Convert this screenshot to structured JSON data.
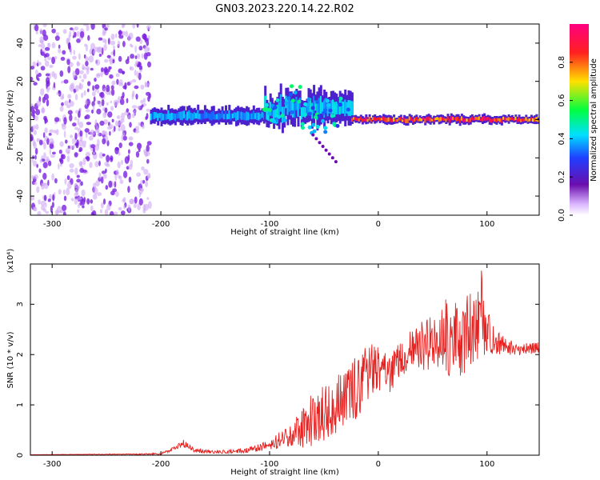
{
  "title": "GN03.2023.220.14.22.R02",
  "chart_data": [
    {
      "type": "heatmap",
      "name": "spectrogram",
      "xlabel": "Height of straight line (km)",
      "ylabel": "Frequency (Hz)",
      "xlim": [
        -320,
        148
      ],
      "ylim": [
        -50,
        50
      ],
      "xticks": [
        -300,
        -200,
        -100,
        0,
        100
      ],
      "yticks": [
        -40,
        -20,
        0,
        20,
        40
      ],
      "colorbar": {
        "label": "Normalized spectral amplitude",
        "range": [
          0,
          1
        ],
        "ticks": [
          "0.0",
          "0.2",
          "0.4",
          "0.6",
          "0.8"
        ],
        "colormap": [
          "#ffffff",
          "#6a0dad",
          "#1f3fff",
          "#00e0ff",
          "#00ff40",
          "#ffe000",
          "#ff2020",
          "#ff0080"
        ]
      },
      "features": [
        {
          "region": "noise",
          "x_range": [
            -320,
            -210
          ],
          "freq_range": [
            -50,
            50
          ],
          "amplitude": 0.1
        },
        {
          "region": "carrier band",
          "x_range": [
            -210,
            -105
          ],
          "freq_center": 2,
          "freq_halfwidth": 4,
          "amplitude": 0.4
        },
        {
          "region": "perturbed band",
          "x_range": [
            -105,
            -25
          ],
          "freq_center": 6,
          "freq_halfwidth": 8,
          "amplitude": 0.45
        },
        {
          "region": "clean carrier",
          "x_range": [
            -25,
            148
          ],
          "freq_center": 0,
          "freq_halfwidth": 2,
          "amplitude": 0.95
        }
      ]
    },
    {
      "type": "line",
      "name": "snr",
      "xlabel": "Height of straight line (km)",
      "ylabel": "SNR (10 * v/v)",
      "scale_label": "(x10⁴)",
      "xlim": [
        -320,
        148
      ],
      "ylim": [
        0,
        3.8
      ],
      "xticks": [
        -300,
        -200,
        -100,
        0,
        100
      ],
      "yticks": [
        0,
        1,
        2,
        3
      ],
      "color": "#e8201e",
      "x": [
        -320,
        -220,
        -200,
        -185,
        -180,
        -170,
        -150,
        -120,
        -100,
        -80,
        -60,
        -40,
        -30,
        -20,
        -10,
        0,
        10,
        20,
        30,
        40,
        50,
        60,
        70,
        80,
        90,
        95,
        100,
        110,
        120,
        130,
        148
      ],
      "values": [
        0.01,
        0.02,
        0.03,
        0.15,
        0.25,
        0.1,
        0.06,
        0.1,
        0.2,
        0.4,
        0.7,
        0.95,
        1.1,
        1.3,
        1.6,
        1.8,
        1.6,
        1.9,
        2.1,
        2.2,
        2.2,
        2.4,
        2.3,
        2.4,
        2.5,
        2.8,
        2.4,
        2.2,
        2.15,
        2.1,
        2.15
      ],
      "envelope": [
        0.0,
        0.01,
        0.02,
        0.05,
        0.08,
        0.05,
        0.03,
        0.05,
        0.1,
        0.25,
        0.55,
        0.6,
        0.6,
        0.7,
        0.6,
        0.5,
        0.4,
        0.35,
        0.4,
        0.5,
        0.6,
        0.75,
        0.8,
        0.8,
        0.8,
        0.9,
        0.5,
        0.25,
        0.15,
        0.12,
        0.12
      ]
    }
  ]
}
